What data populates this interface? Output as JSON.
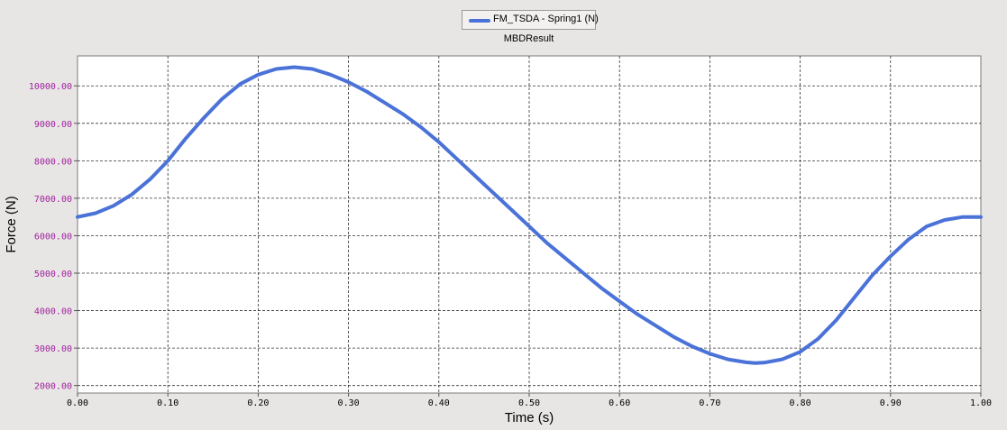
{
  "chart_data": {
    "type": "line",
    "subtitle": "MBDResult",
    "xlabel": "Time (s)",
    "ylabel": "Force (N)",
    "xlim": [
      0,
      1
    ],
    "ylim": [
      1800,
      10800
    ],
    "grid": true,
    "legend_position": "top-center",
    "x_ticks": [
      "0.00",
      "0.10",
      "0.20",
      "0.30",
      "0.40",
      "0.50",
      "0.60",
      "0.70",
      "0.80",
      "0.90",
      "1.00"
    ],
    "y_ticks": [
      "2000.00",
      "3000.00",
      "4000.00",
      "5000.00",
      "6000.00",
      "7000.00",
      "8000.00",
      "9000.00",
      "10000.00"
    ],
    "series": [
      {
        "name": "FM_TSDA - Spring1 (N)",
        "color": "#4a72d8",
        "x": [
          0.0,
          0.02,
          0.04,
          0.06,
          0.08,
          0.1,
          0.12,
          0.14,
          0.16,
          0.18,
          0.2,
          0.22,
          0.24,
          0.26,
          0.28,
          0.3,
          0.32,
          0.34,
          0.36,
          0.38,
          0.4,
          0.42,
          0.44,
          0.46,
          0.48,
          0.5,
          0.52,
          0.54,
          0.56,
          0.58,
          0.6,
          0.62,
          0.64,
          0.66,
          0.68,
          0.7,
          0.72,
          0.74,
          0.75,
          0.76,
          0.78,
          0.8,
          0.82,
          0.84,
          0.86,
          0.88,
          0.9,
          0.92,
          0.94,
          0.96,
          0.98,
          1.0
        ],
        "y": [
          6500,
          6600,
          6800,
          7100,
          7500,
          8000,
          8600,
          9150,
          9650,
          10050,
          10300,
          10450,
          10500,
          10450,
          10300,
          10100,
          9850,
          9550,
          9250,
          8900,
          8500,
          8050,
          7600,
          7150,
          6700,
          6250,
          5800,
          5400,
          5000,
          4600,
          4250,
          3900,
          3600,
          3300,
          3050,
          2850,
          2700,
          2620,
          2600,
          2610,
          2700,
          2900,
          3250,
          3750,
          4350,
          4950,
          5450,
          5900,
          6250,
          6420,
          6500,
          6500
        ]
      }
    ]
  }
}
